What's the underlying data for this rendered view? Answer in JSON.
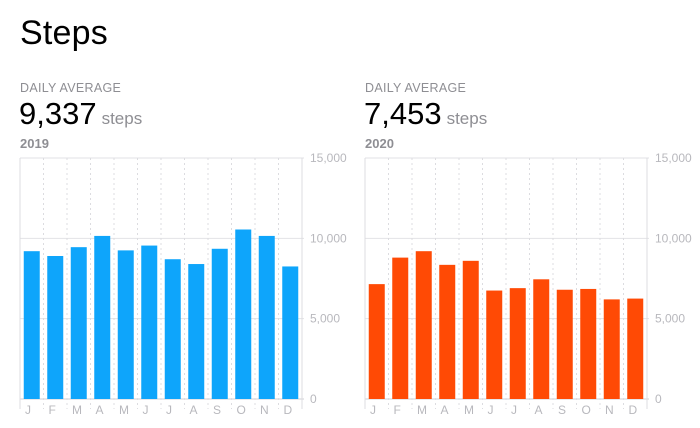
{
  "page_title": "Steps",
  "panels": [
    {
      "label": "DAILY AVERAGE",
      "value": "9,337",
      "unit": "steps",
      "year": "2019",
      "color": "#0ea5fb"
    },
    {
      "label": "DAILY AVERAGE",
      "value": "7,453",
      "unit": "steps",
      "year": "2020",
      "color": "#ff4a05"
    }
  ],
  "chart_data": [
    {
      "type": "bar",
      "title": "",
      "xlabel": "",
      "ylabel": "",
      "categories": [
        "J",
        "F",
        "M",
        "A",
        "M",
        "J",
        "J",
        "A",
        "S",
        "O",
        "N",
        "D"
      ],
      "series": [
        {
          "values": [
            9200,
            8900,
            9450,
            10150,
            9250,
            9550,
            8700,
            8400,
            9350,
            10550,
            10150,
            8250
          ]
        }
      ],
      "ylim": [
        0,
        15000
      ],
      "yticks": [
        "15,000",
        "10,000",
        "5,000",
        "0"
      ],
      "grid": true,
      "color": "#0ea5fb"
    },
    {
      "type": "bar",
      "title": "",
      "xlabel": "",
      "ylabel": "",
      "categories": [
        "J",
        "F",
        "M",
        "A",
        "M",
        "J",
        "J",
        "A",
        "S",
        "O",
        "N",
        "D"
      ],
      "series": [
        {
          "values": [
            7150,
            8800,
            9200,
            8350,
            8600,
            6750,
            6900,
            7450,
            6800,
            6850,
            6200,
            6250
          ]
        }
      ],
      "ylim": [
        0,
        15000
      ],
      "yticks": [
        "15,000",
        "10,000",
        "5,000",
        "0"
      ],
      "grid": true,
      "color": "#ff4a05"
    }
  ]
}
